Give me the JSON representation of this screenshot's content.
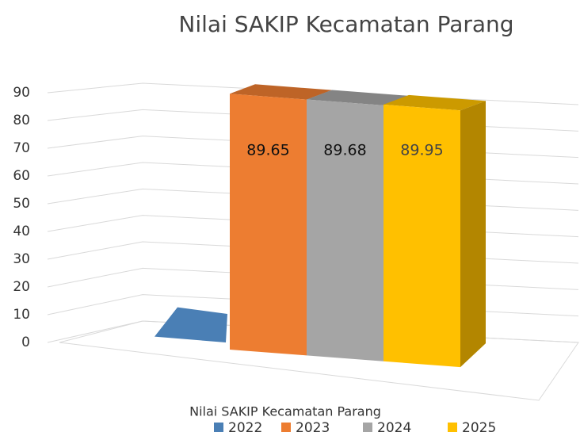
{
  "chart_data": {
    "type": "bar3d",
    "title": "Nilai SAKIP Kecamatan Parang",
    "categories": [
      "Nilai SAKIP Kecamatan Parang"
    ],
    "series": [
      {
        "name": "2022",
        "color": "#4a7fb5",
        "values": [
          0
        ]
      },
      {
        "name": "2023",
        "color": "#ed7d31",
        "values": [
          89.65
        ]
      },
      {
        "name": "2024",
        "color": "#a5a5a5",
        "values": [
          89.68
        ]
      },
      {
        "name": "2025",
        "color": "#ffc000",
        "values": [
          89.95
        ]
      }
    ],
    "ylim": [
      0,
      90
    ],
    "yticks": [
      0,
      10,
      20,
      30,
      40,
      50,
      60,
      70,
      80,
      90
    ],
    "grid": true,
    "legend": "bottom"
  }
}
